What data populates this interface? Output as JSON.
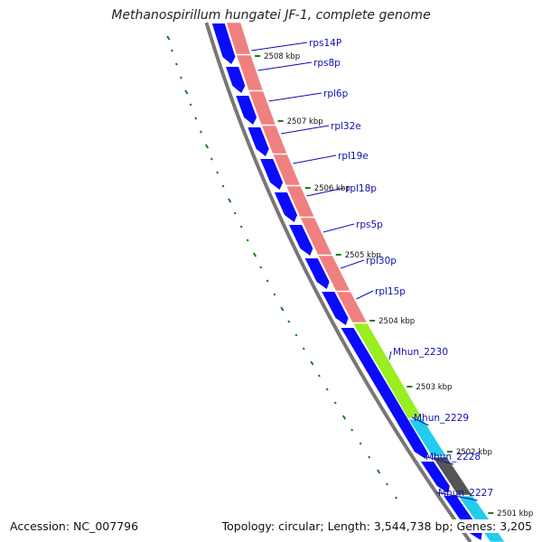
{
  "title": "Methanospirillum hungatei JF-1, complete genome",
  "accession": "Accession: NC_007796",
  "summary": "Topology: circular; Length: 3,544,738 bp; Genes: 3,205",
  "colors": {
    "reverse_cds": "#0a0aff",
    "ribosomal": "#f08080",
    "green_gene": "#99ee22",
    "cyan_gene": "#22ccee",
    "gray_gene": "#555555",
    "backbone": "#777777",
    "gc_skew": "#1a7a1a",
    "label": "#1010b0"
  },
  "ticks": [
    "2508 kbp",
    "2507 kbp",
    "2506 kbp",
    "2505 kbp",
    "2504 kbp",
    "2503 kbp",
    "2502 kbp",
    "2501 kbp"
  ],
  "genes": [
    {
      "label": "rps14P",
      "track": "ribosomal"
    },
    {
      "label": "rps8p",
      "track": "ribosomal"
    },
    {
      "label": "rpl6p",
      "track": "ribosomal"
    },
    {
      "label": "rpl32e",
      "track": "ribosomal"
    },
    {
      "label": "rpl19e",
      "track": "ribosomal"
    },
    {
      "label": "rpl18p",
      "track": "ribosomal"
    },
    {
      "label": "rps5p",
      "track": "ribosomal"
    },
    {
      "label": "rpl30p",
      "track": "ribosomal"
    },
    {
      "label": "rpl15p",
      "track": "ribosomal"
    },
    {
      "label": "Mhun_2230",
      "track": "green_gene"
    },
    {
      "label": "Mhun_2229",
      "track": "cyan_gene"
    },
    {
      "label": "Mhun_2228",
      "track": "gray_gene"
    },
    {
      "label": "Mhun_2227",
      "track": "cyan_gene"
    }
  ]
}
